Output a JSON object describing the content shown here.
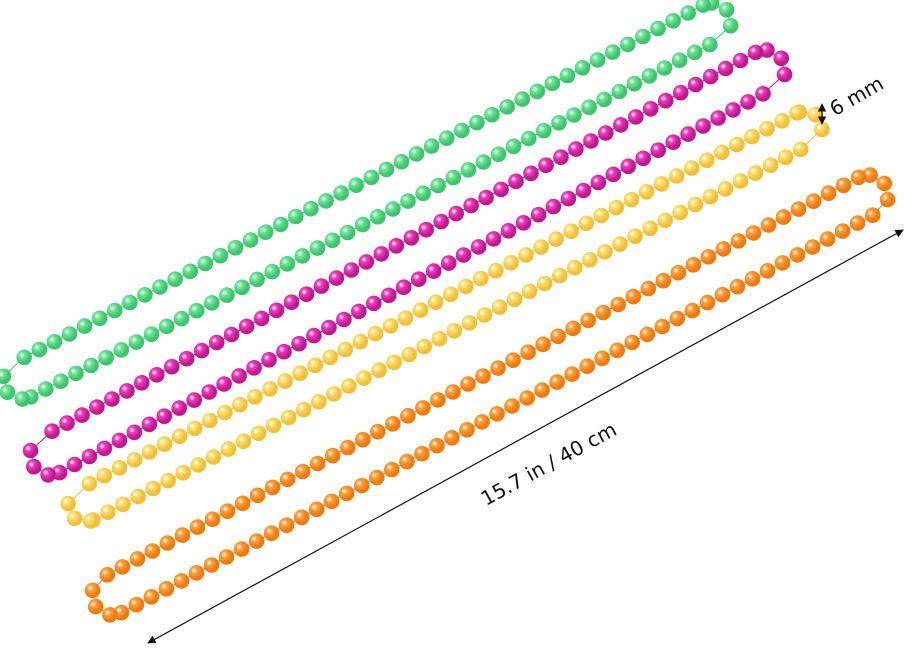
{
  "annotations": {
    "bead_size": "6 mm",
    "length": "15.7 in / 40 cm"
  }
}
